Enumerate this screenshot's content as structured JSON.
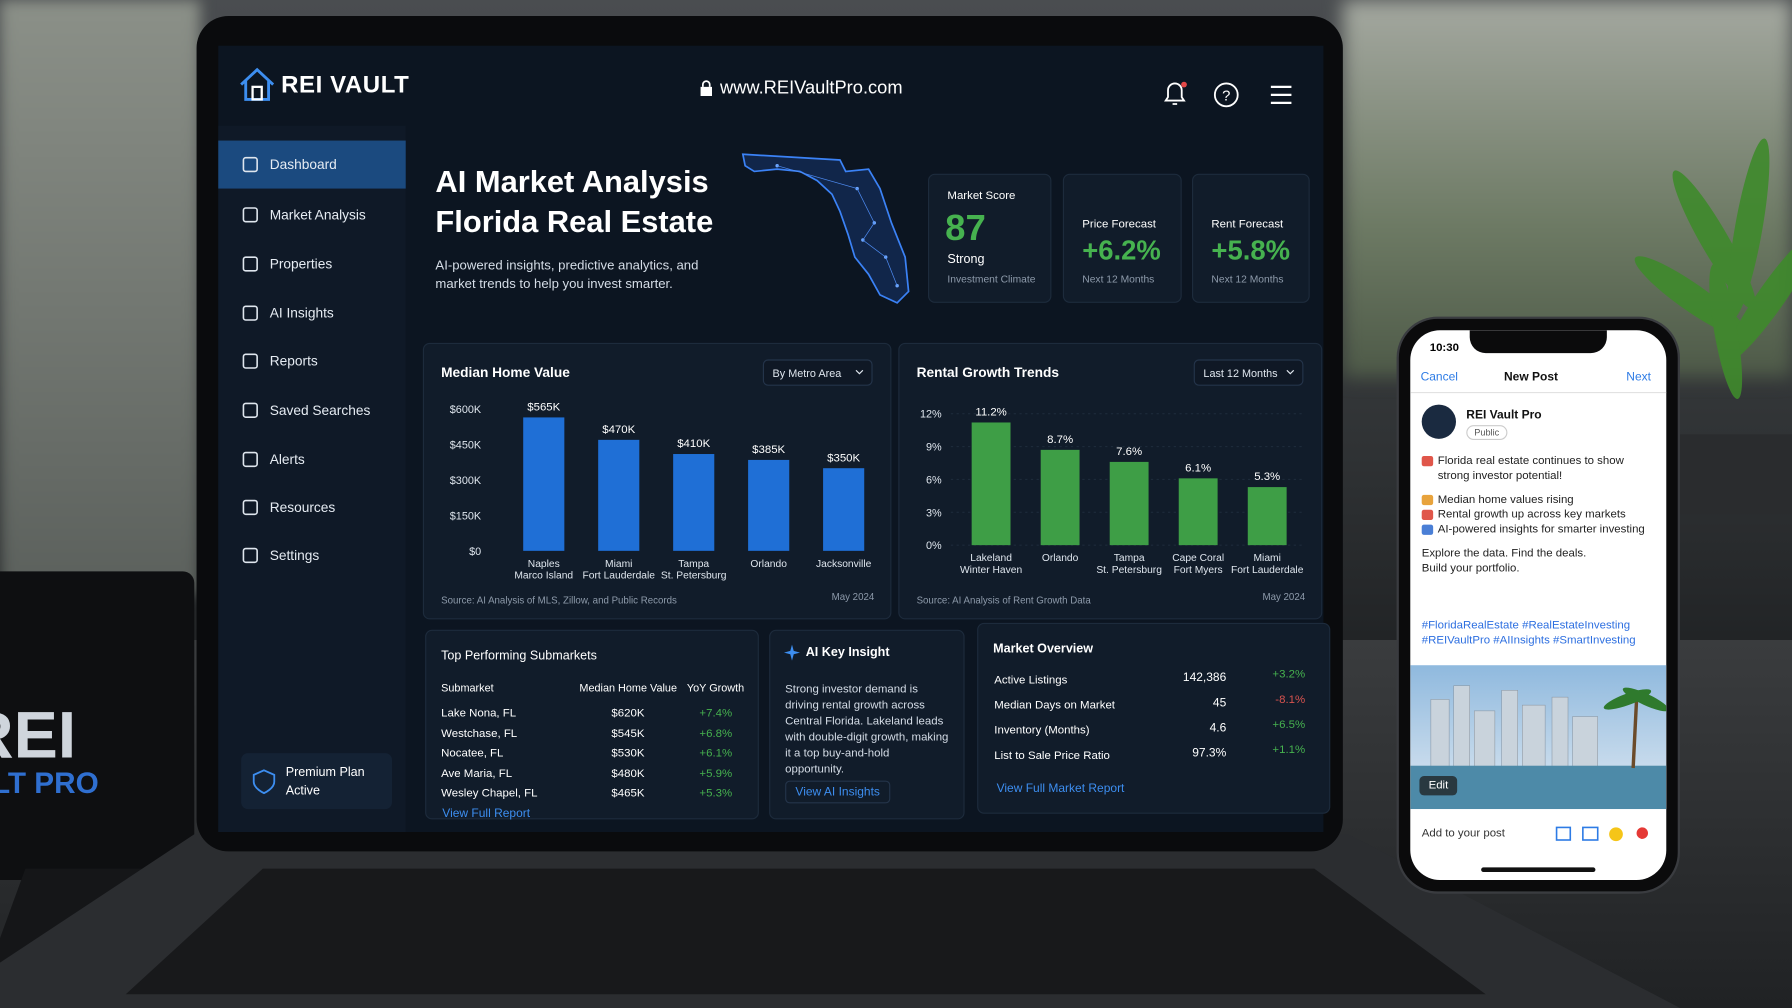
{
  "header": {
    "logo": "REI VAULT",
    "url": "www.REIVaultPro.com"
  },
  "nav": {
    "items": [
      "Dashboard",
      "Market Analysis",
      "Properties",
      "AI Insights",
      "Reports",
      "Saved Searches",
      "Alerts",
      "Resources",
      "Settings"
    ],
    "plan": "Premium Plan",
    "plan_status": "Active"
  },
  "hero": {
    "title": [
      "AI Market Analysis",
      "Florida Real Estate"
    ],
    "description": "AI-powered insights, predictive analytics, and market trends to help you invest smarter."
  },
  "kpis": [
    {
      "label": "Market Score",
      "value": "87",
      "note": "Strong",
      "sub": "Investment Climate"
    },
    {
      "label": "Price Forecast",
      "value": "+6.2%",
      "sub": "Next 12 Months"
    },
    {
      "label": "Rent Forecast",
      "value": "+5.8%",
      "sub": "Next 12 Months"
    }
  ],
  "chart_data": [
    {
      "type": "bar",
      "title": "Median Home Value",
      "filter": "By Metro Area",
      "categories": [
        "Naples\nMarco Island",
        "Miami\nFort Lauderdale",
        "Tampa\nSt. Petersburg",
        "Orlando",
        "Jacksonville"
      ],
      "values": [
        565000,
        470000,
        410000,
        385000,
        350000
      ],
      "value_labels": [
        "$565K",
        "$470K",
        "$410K",
        "$385K",
        "$350K"
      ],
      "color": "#1f6fd6",
      "ylim": [
        0,
        600000
      ],
      "yticks": [
        {
          "value": 0,
          "label": "$0"
        },
        {
          "value": 150000,
          "label": "$150K"
        },
        {
          "value": 300000,
          "label": "$300K"
        },
        {
          "value": 450000,
          "label": "$450K"
        },
        {
          "value": 600000,
          "label": "$600K"
        }
      ],
      "grid": false,
      "source": "Source: AI Analysis of MLS, Zillow, and Public Records",
      "date": "May 2024"
    },
    {
      "type": "bar",
      "title": "Rental Growth Trends",
      "filter": "Last 12 Months",
      "categories": [
        "Lakeland\nWinter Haven",
        "Orlando",
        "Tampa\nSt. Petersburg",
        "Cape Coral\nFort Myers",
        "Miami\nFort Lauderdale"
      ],
      "values": [
        11.2,
        8.7,
        7.6,
        6.1,
        5.3
      ],
      "value_labels": [
        "11.2%",
        "8.7%",
        "7.6%",
        "6.1%",
        "5.3%"
      ],
      "color": "#3e9e46",
      "ylim": [
        0,
        12
      ],
      "yticks": [
        {
          "value": 0,
          "label": "0%"
        },
        {
          "value": 3,
          "label": "3%"
        },
        {
          "value": 6,
          "label": "6%"
        },
        {
          "value": 9,
          "label": "9%"
        },
        {
          "value": 12,
          "label": "12%"
        }
      ],
      "grid": true,
      "source": "Source: AI Analysis of Rent Growth Data",
      "date": "May 2024"
    }
  ],
  "submarkets": {
    "title": "Top Performing Submarkets",
    "columns": [
      "Submarket",
      "Median Home Value",
      "YoY Growth"
    ],
    "rows": [
      [
        "Lake Nona, FL",
        "$620K",
        "+7.4%"
      ],
      [
        "Westchase, FL",
        "$545K",
        "+6.8%"
      ],
      [
        "Nocatee, FL",
        "$530K",
        "+6.1%"
      ],
      [
        "Ave Maria, FL",
        "$480K",
        "+5.9%"
      ],
      [
        "Wesley Chapel, FL",
        "$465K",
        "+5.3%"
      ]
    ],
    "link": "View Full Report"
  },
  "insight": {
    "title": "AI Key Insight",
    "text": "Strong investor demand is driving rental growth across Central Florida. Lakeland leads with double-digit growth, making it a top buy-and-hold opportunity.",
    "link": "View AI Insights"
  },
  "overview": {
    "title": "Market Overview",
    "rows": [
      [
        "Active Listings",
        "142,386",
        "+3.2%"
      ],
      [
        "Median Days on Market",
        "45",
        "-8.1%"
      ],
      [
        "Inventory (Months)",
        "4.6",
        "+6.5%"
      ],
      [
        "List to Sale Price Ratio",
        "97.3%",
        "+1.1%"
      ]
    ],
    "link": "View Full Market Report"
  },
  "phone": {
    "time": "10:30",
    "cancel": "Cancel",
    "heading": "New Post",
    "next": "Next",
    "account": "REI Vault Pro",
    "audience": "Public",
    "paragraphs": [
      "Florida real estate continues to show strong investor potential!",
      "Median home values rising",
      "Rental growth up across key markets",
      "AI-powered insights for smarter investing",
      "Explore the data. Find the deals.",
      "Build your portfolio."
    ],
    "hashtags": "#FloridaRealEstate #RealEstateInvesting #REIVaultPro #AIInsights #SmartInvesting",
    "edit": "Edit",
    "add": "Add to your post"
  },
  "mug": {
    "lines": [
      "REI",
      "VAULT PRO"
    ]
  }
}
